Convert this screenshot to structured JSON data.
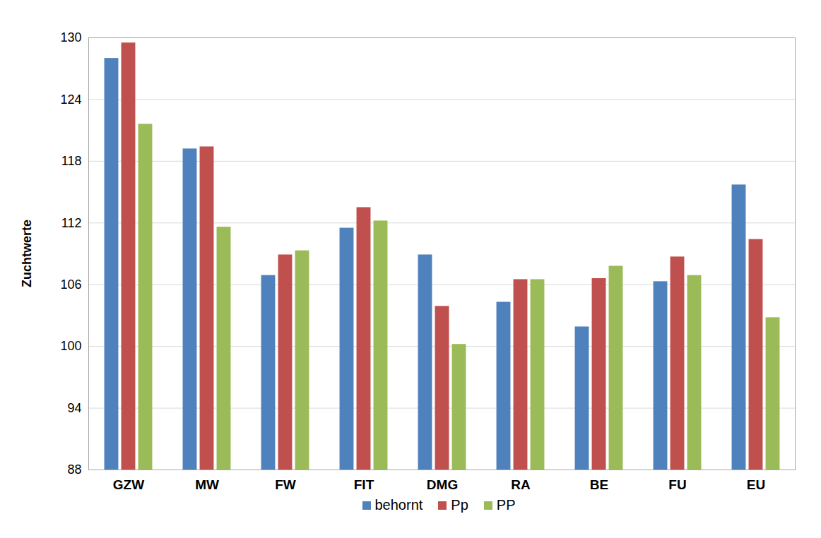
{
  "chart_data": {
    "type": "bar",
    "y_label": "Zuchtwerte",
    "categories": [
      "GZW",
      "MW",
      "FW",
      "FIT",
      "DMG",
      "RA",
      "BE",
      "FU",
      "EU"
    ],
    "series": [
      {
        "name": "behornt",
        "color": "#4f81bd",
        "values": [
          128.0,
          119.2,
          106.9,
          111.5,
          108.9,
          104.3,
          101.9,
          106.3,
          115.7
        ]
      },
      {
        "name": "Pp",
        "color": "#c0504d",
        "values": [
          129.5,
          119.4,
          108.9,
          113.5,
          103.9,
          106.5,
          106.6,
          108.7,
          110.4
        ]
      },
      {
        "name": "PP",
        "color": "#9bbb59",
        "values": [
          121.6,
          111.6,
          109.3,
          112.2,
          100.2,
          106.5,
          107.8,
          106.9,
          102.8
        ]
      }
    ],
    "ylim": [
      88,
      130
    ],
    "yticks": [
      88,
      94,
      100,
      106,
      112,
      118,
      124,
      130
    ],
    "grid": true,
    "legend": "bottom"
  }
}
